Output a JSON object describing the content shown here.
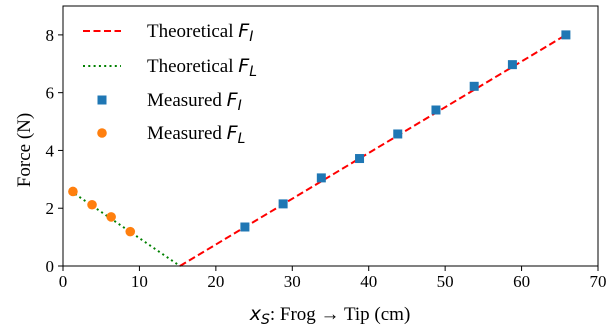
{
  "chart_data": {
    "type": "scatter",
    "xlabel_var": "x",
    "xlabel_var_sub": "S",
    "xlabel_text": ": Frog → Tip (cm)",
    "ylabel": "Force (N)",
    "xlim": [
      0,
      70
    ],
    "ylim": [
      0,
      9
    ],
    "xticks": [
      0,
      10,
      20,
      30,
      40,
      50,
      60,
      70
    ],
    "yticks": [
      0,
      2,
      4,
      6,
      8
    ],
    "grid": false,
    "legend_position": "top-left",
    "series": [
      {
        "name": "Theoretical F_I",
        "label_prefix": "Theoretical ",
        "label_var": "F",
        "label_sub": "I",
        "kind": "line",
        "style": "dashed",
        "color": "#ff0000",
        "x": [
          15.3,
          65.8
        ],
        "y": [
          0,
          8.0
        ]
      },
      {
        "name": "Theoretical F_L",
        "label_prefix": "Theoretical ",
        "label_var": "F",
        "label_sub": "L",
        "kind": "line",
        "style": "dotted",
        "color": "#008000",
        "x": [
          1.0,
          15.3
        ],
        "y": [
          2.6,
          0
        ]
      },
      {
        "name": "Measured F_I",
        "label_prefix": "Measured ",
        "label_var": "F",
        "label_sub": "I",
        "kind": "scatter",
        "marker": "square",
        "color": "#1f77b4",
        "x": [
          23.8,
          28.8,
          33.8,
          38.8,
          43.8,
          48.8,
          53.8,
          58.8,
          65.8
        ],
        "y": [
          1.35,
          2.15,
          3.05,
          3.72,
          4.57,
          5.4,
          6.22,
          6.97,
          8.0
        ]
      },
      {
        "name": "Measured F_L",
        "label_prefix": "Measured ",
        "label_var": "F",
        "label_sub": "L",
        "kind": "scatter",
        "marker": "circle",
        "color": "#ff7f0e",
        "x": [
          1.3,
          3.8,
          6.3,
          8.8
        ],
        "y": [
          2.58,
          2.12,
          1.7,
          1.19
        ]
      }
    ]
  }
}
